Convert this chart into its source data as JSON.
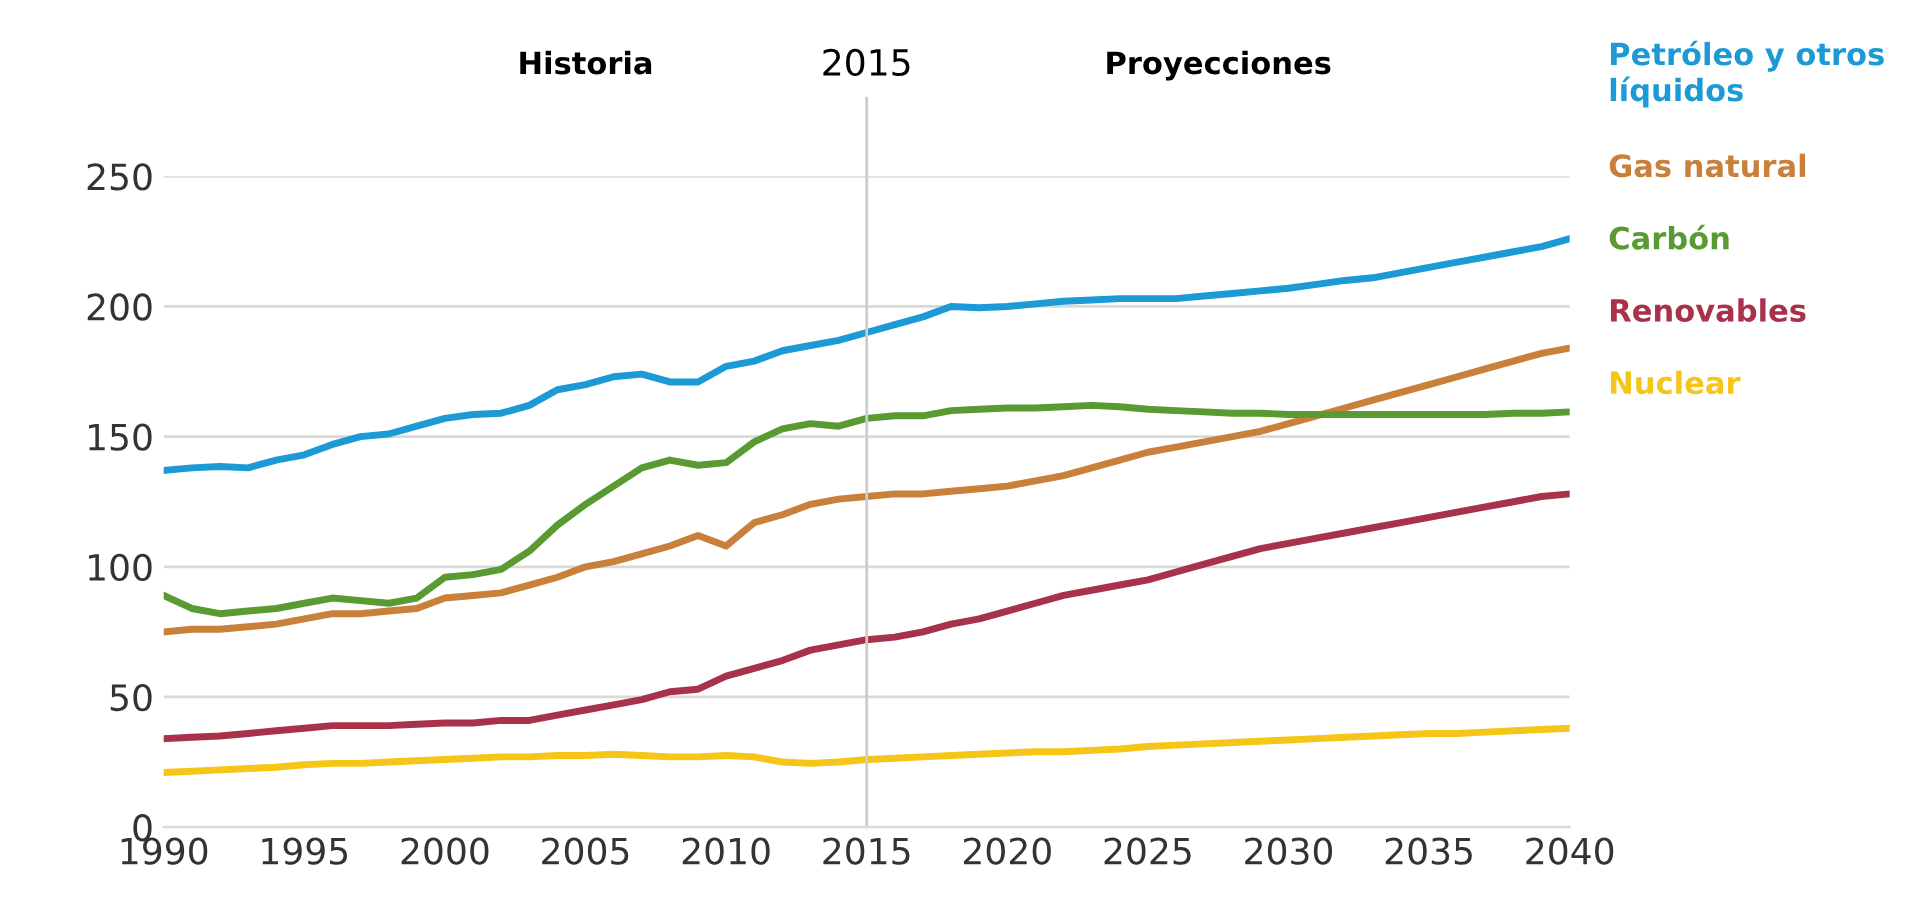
{
  "chart_data": {
    "type": "line",
    "x": [
      1990,
      1991,
      1992,
      1993,
      1994,
      1995,
      1996,
      1997,
      1998,
      1999,
      2000,
      2001,
      2002,
      2003,
      2004,
      2005,
      2006,
      2007,
      2008,
      2009,
      2010,
      2011,
      2012,
      2013,
      2014,
      2015,
      2016,
      2017,
      2018,
      2019,
      2020,
      2021,
      2022,
      2023,
      2024,
      2025,
      2026,
      2027,
      2028,
      2029,
      2030,
      2031,
      2032,
      2033,
      2034,
      2035,
      2036,
      2037,
      2038,
      2039,
      2040
    ],
    "series": [
      {
        "name": "Petróleo y otros líquidos",
        "color": "#1b9ad6",
        "values": [
          137,
          138,
          138.5,
          138,
          141,
          143,
          147,
          150,
          151,
          154,
          157,
          158.5,
          159,
          162,
          168,
          170,
          173,
          174,
          171,
          171,
          177,
          179,
          183,
          185,
          187,
          190,
          193,
          196,
          200,
          199.5,
          200,
          201,
          202,
          202.5,
          203,
          203,
          203,
          204,
          205,
          206,
          207,
          208.5,
          210,
          211,
          213,
          215,
          217,
          219,
          221,
          223,
          226
        ]
      },
      {
        "name": "Gas natural",
        "color": "#c8803a",
        "values": [
          75,
          76,
          76,
          77,
          78,
          80,
          82,
          82,
          83,
          84,
          88,
          89,
          90,
          93,
          96,
          100,
          102,
          105,
          108,
          112,
          108,
          117,
          120,
          124,
          126,
          127,
          128,
          128,
          129,
          130,
          131,
          133,
          135,
          138,
          141,
          144,
          146,
          148,
          150,
          152,
          155,
          158,
          161,
          164,
          167,
          170,
          173,
          176,
          179,
          182,
          184
        ]
      },
      {
        "name": "Carbón",
        "color": "#5a9a32",
        "values": [
          89,
          84,
          82,
          83,
          84,
          86,
          88,
          87,
          86,
          88,
          96,
          97,
          99,
          106,
          116,
          124,
          131,
          138,
          141,
          139,
          140,
          148,
          153,
          155,
          154,
          157,
          158,
          158,
          160,
          160.5,
          161,
          161,
          161.5,
          162,
          161.5,
          160.5,
          160,
          159.5,
          159,
          159,
          158.5,
          158.5,
          158.5,
          158.5,
          158.5,
          158.5,
          158.5,
          158.5,
          159,
          159,
          159.5
        ]
      },
      {
        "name": "Renovables",
        "color": "#a8324a",
        "values": [
          34,
          34.5,
          35,
          36,
          37,
          38,
          39,
          39,
          39,
          39.5,
          40,
          40,
          41,
          41,
          43,
          45,
          47,
          49,
          52,
          53,
          58,
          61,
          64,
          68,
          70,
          72,
          73,
          75,
          78,
          80,
          83,
          86,
          89,
          91,
          93,
          95,
          98,
          101,
          104,
          107,
          109,
          111,
          113,
          115,
          117,
          119,
          121,
          123,
          125,
          127,
          128
        ]
      },
      {
        "name": "Nuclear",
        "color": "#f5c518",
        "values": [
          21,
          21.5,
          22,
          22.5,
          23,
          24,
          24.5,
          24.5,
          25,
          25.5,
          26,
          26.5,
          27,
          27,
          27.5,
          27.5,
          28,
          27.5,
          27,
          27,
          27.5,
          27,
          25,
          24.5,
          25,
          26,
          26.5,
          27,
          27.5,
          28,
          28.5,
          29,
          29,
          29.5,
          30,
          31,
          31.5,
          32,
          32.5,
          33,
          33.5,
          34,
          34.5,
          35,
          35.5,
          36,
          36,
          36.5,
          37,
          37.5,
          38
        ]
      }
    ],
    "xlim": [
      1990,
      2040
    ],
    "xticks": [
      1990,
      1995,
      2000,
      2005,
      2010,
      2015,
      2020,
      2025,
      2030,
      2035,
      2040
    ],
    "ylim": [
      0,
      250
    ],
    "yticks": [
      0,
      50,
      100,
      150,
      200,
      250
    ],
    "ref_lines": [
      {
        "axis": "x",
        "value": 2015,
        "label": "2015",
        "color": "#cccccc"
      }
    ],
    "annotations": [
      "Historia",
      "Proyecciones"
    ],
    "grid": "y",
    "legend": "right",
    "marker": "none",
    "line_style": "solid"
  }
}
